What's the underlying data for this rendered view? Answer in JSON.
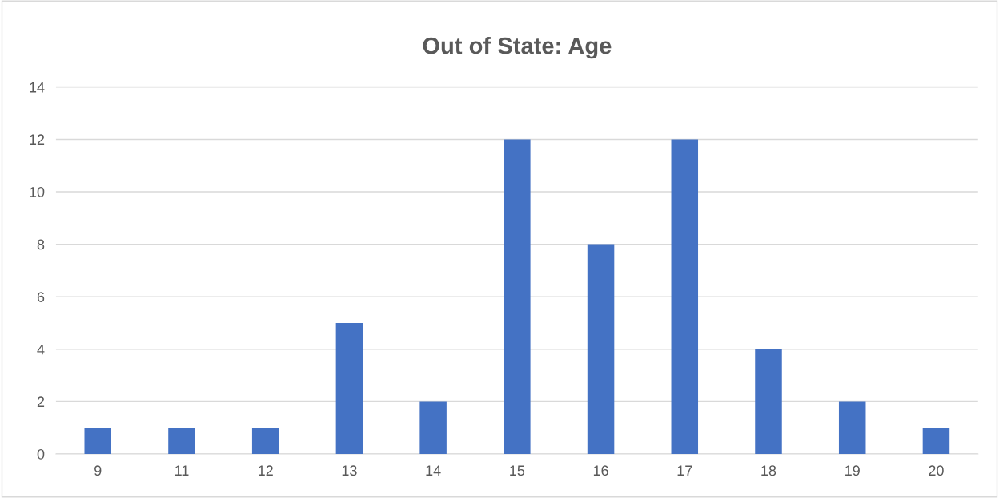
{
  "chart_data": {
    "type": "bar",
    "title": "Out of State: Age",
    "categories": [
      "9",
      "11",
      "12",
      "13",
      "14",
      "15",
      "16",
      "17",
      "18",
      "19",
      "20"
    ],
    "values": [
      1,
      1,
      1,
      5,
      2,
      12,
      8,
      12,
      4,
      2,
      1
    ],
    "color": "#4472c4",
    "ylim": [
      0,
      14
    ],
    "yticks": [
      0,
      2,
      4,
      6,
      8,
      10,
      12,
      14
    ],
    "grid": "y"
  }
}
